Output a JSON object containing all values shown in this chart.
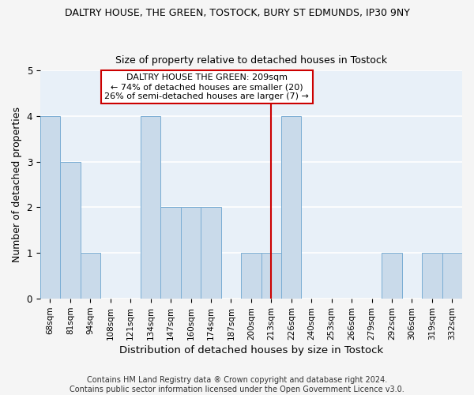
{
  "title": "DALTRY HOUSE, THE GREEN, TOSTOCK, BURY ST EDMUNDS, IP30 9NY",
  "subtitle": "Size of property relative to detached houses in Tostock",
  "xlabel": "Distribution of detached houses by size in Tostock",
  "ylabel": "Number of detached properties",
  "categories": [
    "68sqm",
    "81sqm",
    "94sqm",
    "108sqm",
    "121sqm",
    "134sqm",
    "147sqm",
    "160sqm",
    "174sqm",
    "187sqm",
    "200sqm",
    "213sqm",
    "226sqm",
    "240sqm",
    "253sqm",
    "266sqm",
    "279sqm",
    "292sqm",
    "306sqm",
    "319sqm",
    "332sqm"
  ],
  "values": [
    4,
    3,
    1,
    0,
    0,
    4,
    2,
    2,
    2,
    0,
    1,
    1,
    4,
    0,
    0,
    0,
    0,
    1,
    0,
    1,
    1
  ],
  "bar_color": "#c9daea",
  "bar_edge_color": "#7aadd4",
  "marker_label": "DALTRY HOUSE THE GREEN: 209sqm",
  "annotation_line1": "← 74% of detached houses are smaller (20)",
  "annotation_line2": "26% of semi-detached houses are larger (7) →",
  "annotation_box_color": "#ffffff",
  "annotation_box_edge_color": "#cc0000",
  "vline_color": "#cc0000",
  "marker_index": 11,
  "ylim": [
    0,
    5
  ],
  "yticks": [
    0,
    1,
    2,
    3,
    4,
    5
  ],
  "footer": "Contains HM Land Registry data ® Crown copyright and database right 2024.\nContains public sector information licensed under the Open Government Licence v3.0.",
  "bg_color": "#e8f0f8",
  "grid_color": "#ffffff",
  "title_fontsize": 9,
  "subtitle_fontsize": 9,
  "axis_label_fontsize": 9,
  "tick_fontsize": 7.5,
  "annotation_fontsize": 8,
  "footer_fontsize": 7
}
